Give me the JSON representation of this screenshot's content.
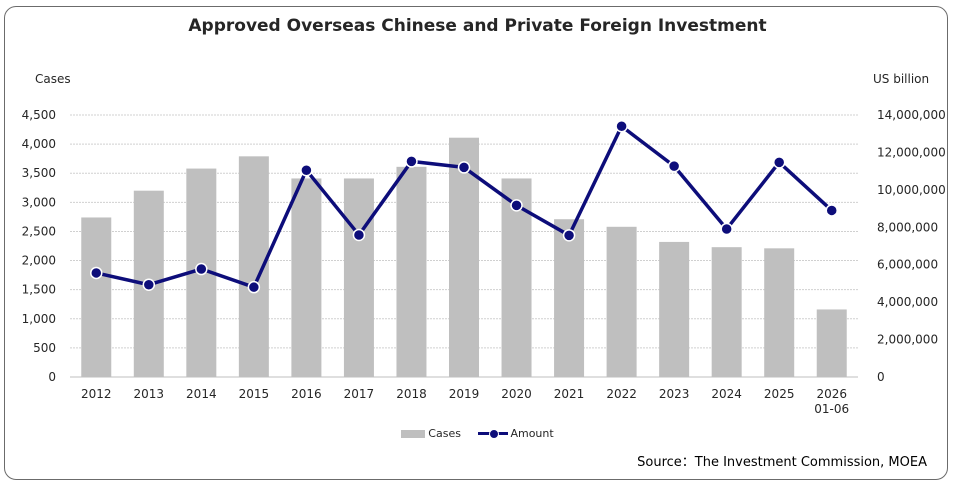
{
  "chart_data": {
    "type": "bar+line",
    "title": "Approved Overseas Chinese and Private Foreign Investment",
    "left_axis_label": "Cases",
    "right_axis_label": "US billion",
    "categories": [
      "2012",
      "2013",
      "2014",
      "2015",
      "2016",
      "2017",
      "2018",
      "2019",
      "2020",
      "2021",
      "2022",
      "2023",
      "2024",
      "2025",
      "2026 01-06"
    ],
    "series": [
      {
        "name": "Cases",
        "type": "bar",
        "axis": "left",
        "values": [
          2740,
          3200,
          3580,
          3790,
          3410,
          3410,
          3610,
          4110,
          3410,
          2710,
          2580,
          2320,
          2230,
          2210,
          1160
        ]
      },
      {
        "name": "Amount",
        "type": "line",
        "axis": "right",
        "values": [
          5560000,
          4930000,
          5770000,
          4800000,
          11050000,
          7590000,
          11520000,
          11200000,
          9170000,
          7570000,
          13400000,
          11270000,
          7910000,
          11470000,
          8900000
        ]
      }
    ],
    "ylim_left": [
      0,
      4500
    ],
    "yticks_left": [
      "0",
      "500",
      "1,000",
      "1,500",
      "2,000",
      "2,500",
      "3,000",
      "3,500",
      "4,000",
      "4,500"
    ],
    "ylim_right": [
      0,
      14000000
    ],
    "yticks_right": [
      "0",
      "2,000,000",
      "4,000,000",
      "6,000,000",
      "8,000,000",
      "10,000,000",
      "12,000,000",
      "14,000,000"
    ],
    "grid": true,
    "legend_position": "bottom",
    "colors": {
      "bar": "#bfbfbf",
      "line": "#0d0d7a",
      "grid": "#d0d0d0"
    }
  },
  "source": "Source：The Investment Commission, MOEA"
}
